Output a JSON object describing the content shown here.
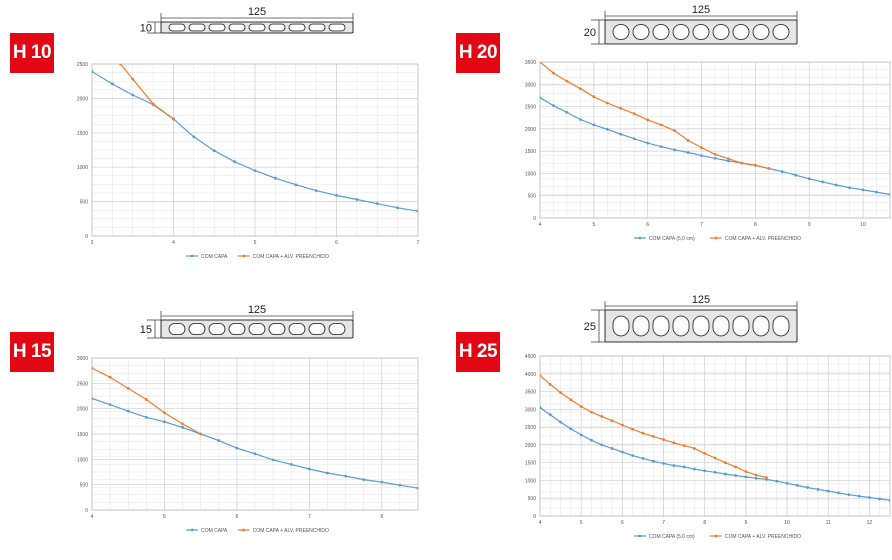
{
  "colors": {
    "badge": "#e30613",
    "series_blue": "#5b9bd5",
    "series_orange": "#ed7d31"
  },
  "panels": [
    {
      "label": "H 10",
      "slab_width": "125",
      "slab_height": "10"
    },
    {
      "label": "H 20",
      "slab_width": "125",
      "slab_height": "20"
    },
    {
      "label": "H 15",
      "slab_width": "125",
      "slab_height": "15"
    },
    {
      "label": "H 25",
      "slab_width": "125",
      "slab_height": "25"
    }
  ],
  "chart_data": [
    {
      "type": "line",
      "xlim": [
        3,
        7
      ],
      "ylim": [
        0,
        2500
      ],
      "x_ticks": [
        "3",
        "4",
        "5",
        "6",
        "7"
      ],
      "y_ticks": [
        "0",
        "500",
        "1000",
        "1500",
        "2000",
        "2500"
      ],
      "grid": true,
      "legend": "bottom",
      "series": [
        {
          "name": "COM CAPA",
          "x": [
            3,
            3.25,
            3.5,
            3.75,
            4,
            4.25,
            4.5,
            4.75,
            5,
            5.25,
            5.5,
            5.75,
            6,
            6.25,
            6.5,
            6.75,
            7
          ],
          "y": [
            2390,
            2210,
            2050,
            1910,
            1700,
            1440,
            1240,
            1080,
            950,
            840,
            745,
            660,
            590,
            530,
            470,
            410,
            360
          ]
        },
        {
          "name": "COM CAPA + ALV. PREENCHIDO",
          "x": [
            3.35,
            3.5,
            3.75,
            4
          ],
          "y": [
            2500,
            2280,
            1920,
            1700
          ]
        }
      ]
    },
    {
      "type": "line",
      "xlim": [
        4,
        10.5
      ],
      "ylim": [
        0,
        3500
      ],
      "x_ticks": [
        "4",
        "5",
        "6",
        "7",
        "8",
        "9",
        "10"
      ],
      "y_ticks": [
        "0",
        "500",
        "1000",
        "1500",
        "2000",
        "2500",
        "3000",
        "3500"
      ],
      "grid": true,
      "legend": "bottom",
      "series": [
        {
          "name": "COM CAPA (5,0 cm)",
          "x": [
            4,
            4.25,
            4.5,
            4.75,
            5,
            5.25,
            5.5,
            5.75,
            6,
            6.25,
            6.5,
            6.75,
            7,
            7.25,
            7.5,
            7.75,
            8,
            8.25,
            8.5,
            8.75,
            9,
            9.25,
            9.5,
            9.75,
            10,
            10.25,
            10.5
          ],
          "y": [
            2700,
            2520,
            2370,
            2210,
            2090,
            1990,
            1880,
            1780,
            1680,
            1600,
            1530,
            1470,
            1400,
            1340,
            1280,
            1230,
            1180,
            1110,
            1040,
            960,
            880,
            810,
            740,
            680,
            630,
            580,
            530
          ]
        },
        {
          "name": "COM CAPA + ALV. PREENCHIDO",
          "x": [
            4,
            4.25,
            4.5,
            4.75,
            5,
            5.25,
            5.5,
            5.75,
            6,
            6.25,
            6.5,
            6.75,
            7,
            7.25,
            7.5,
            7.75,
            8,
            8.25
          ],
          "y": [
            3500,
            3250,
            3070,
            2900,
            2720,
            2580,
            2460,
            2340,
            2200,
            2090,
            1960,
            1740,
            1580,
            1430,
            1330,
            1230,
            1180,
            1110
          ]
        }
      ]
    },
    {
      "type": "line",
      "xlim": [
        4,
        8.5
      ],
      "ylim": [
        0,
        3000
      ],
      "x_ticks": [
        "4",
        "5",
        "6",
        "7",
        "8"
      ],
      "y_ticks": [
        "0",
        "500",
        "1000",
        "1500",
        "2000",
        "2500",
        "3000"
      ],
      "grid": true,
      "legend": "bottom",
      "series": [
        {
          "name": "COM CAPA",
          "x": [
            4,
            4.25,
            4.5,
            4.75,
            5,
            5.25,
            5.5,
            5.75,
            6,
            6.25,
            6.5,
            6.75,
            7,
            7.25,
            7.5,
            7.75,
            8,
            8.25,
            8.5
          ],
          "y": [
            2200,
            2080,
            1950,
            1830,
            1740,
            1630,
            1500,
            1370,
            1220,
            1110,
            990,
            900,
            810,
            730,
            670,
            600,
            550,
            490,
            430
          ]
        },
        {
          "name": "COM CAPA + ALV. PREENCHIDO",
          "x": [
            4,
            4.25,
            4.5,
            4.75,
            5,
            5.25,
            5.5
          ],
          "y": [
            2800,
            2620,
            2400,
            2180,
            1920,
            1700,
            1500
          ]
        }
      ]
    },
    {
      "type": "line",
      "xlim": [
        4,
        12.5
      ],
      "ylim": [
        0,
        4500
      ],
      "x_ticks": [
        "4",
        "5",
        "6",
        "7",
        "8",
        "9",
        "10",
        "11",
        "12"
      ],
      "y_ticks": [
        "0",
        "500",
        "1000",
        "1500",
        "2000",
        "2500",
        "3000",
        "3500",
        "4000",
        "4500"
      ],
      "grid": true,
      "legend": "bottom",
      "series": [
        {
          "name": "COM CAPA (5,0 cm)",
          "x": [
            4,
            4.25,
            4.5,
            4.75,
            5,
            5.25,
            5.5,
            5.75,
            6,
            6.25,
            6.5,
            6.75,
            7,
            7.25,
            7.5,
            7.75,
            8,
            8.25,
            8.5,
            8.75,
            9,
            9.25,
            9.5,
            9.75,
            10,
            10.25,
            10.5,
            10.75,
            11,
            11.25,
            11.5,
            11.75,
            12,
            12.25,
            12.5
          ],
          "y": [
            3050,
            2850,
            2640,
            2450,
            2280,
            2130,
            2000,
            1900,
            1800,
            1700,
            1620,
            1540,
            1480,
            1420,
            1380,
            1320,
            1270,
            1230,
            1180,
            1140,
            1100,
            1060,
            1030,
            980,
            920,
            860,
            800,
            750,
            700,
            650,
            600,
            560,
            520,
            480,
            440
          ]
        },
        {
          "name": "COM CAPA + ALV. PREENCHIDO",
          "x": [
            4,
            4.25,
            4.5,
            4.75,
            5,
            5.25,
            5.5,
            5.75,
            6,
            6.25,
            6.5,
            6.75,
            7,
            7.25,
            7.5,
            7.75,
            8,
            8.25,
            8.5,
            8.75,
            9,
            9.25,
            9.5
          ],
          "y": [
            3950,
            3700,
            3470,
            3270,
            3080,
            2920,
            2800,
            2680,
            2560,
            2440,
            2330,
            2240,
            2150,
            2060,
            1980,
            1900,
            1760,
            1630,
            1500,
            1380,
            1250,
            1150,
            1080
          ]
        }
      ]
    }
  ]
}
